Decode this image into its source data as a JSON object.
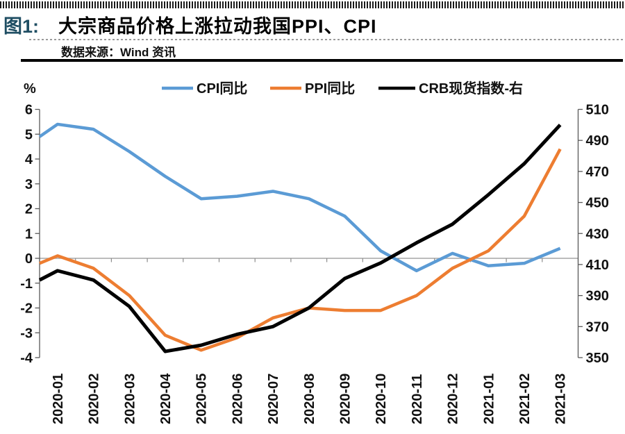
{
  "header": {
    "figure_label": "图1:",
    "title": "大宗商品价格上涨拉动我国PPI、CPI",
    "source": "数据来源：Wind 资讯"
  },
  "chart_data": {
    "type": "line",
    "unit_label": "%",
    "legend_position": "top",
    "grid": "zero-line-only",
    "categories": [
      "2020-01",
      "2020-02",
      "2020-03",
      "2020-04",
      "2020-05",
      "2020-06",
      "2020-07",
      "2020-08",
      "2020-09",
      "2020-10",
      "2020-11",
      "2020-12",
      "2021-01",
      "2021-02",
      "2021-03"
    ],
    "series": [
      {
        "name": "CPI同比",
        "axis": "left",
        "color": "#5B9BD5",
        "values": [
          5.4,
          5.2,
          4.3,
          3.3,
          2.4,
          2.5,
          2.7,
          2.4,
          1.7,
          0.3,
          -0.5,
          0.2,
          -0.3,
          -0.2,
          0.4
        ],
        "edge_value": 4.9
      },
      {
        "name": "PPI同比",
        "axis": "left",
        "color": "#ED7D31",
        "values": [
          0.1,
          -0.4,
          -1.5,
          -3.1,
          -3.7,
          -3.2,
          -2.4,
          -2.0,
          -2.1,
          -2.1,
          -1.5,
          -0.4,
          0.3,
          1.7,
          4.4
        ],
        "edge_value": -0.2
      },
      {
        "name": "CRB现货指数-右",
        "axis": "right",
        "color": "#000000",
        "values": [
          406,
          400,
          383,
          354,
          358,
          365,
          370,
          382,
          401,
          411,
          424,
          436,
          455,
          475,
          500
        ],
        "edge_value": 400
      }
    ],
    "left_axis": {
      "min": -4,
      "max": 6,
      "step": 1,
      "ticks": [
        6,
        5,
        4,
        3,
        2,
        1,
        0,
        -1,
        -2,
        -3,
        -4
      ]
    },
    "right_axis": {
      "min": 350,
      "max": 510,
      "step": 20,
      "ticks": [
        510,
        490,
        470,
        450,
        430,
        410,
        390,
        370,
        350
      ]
    }
  }
}
